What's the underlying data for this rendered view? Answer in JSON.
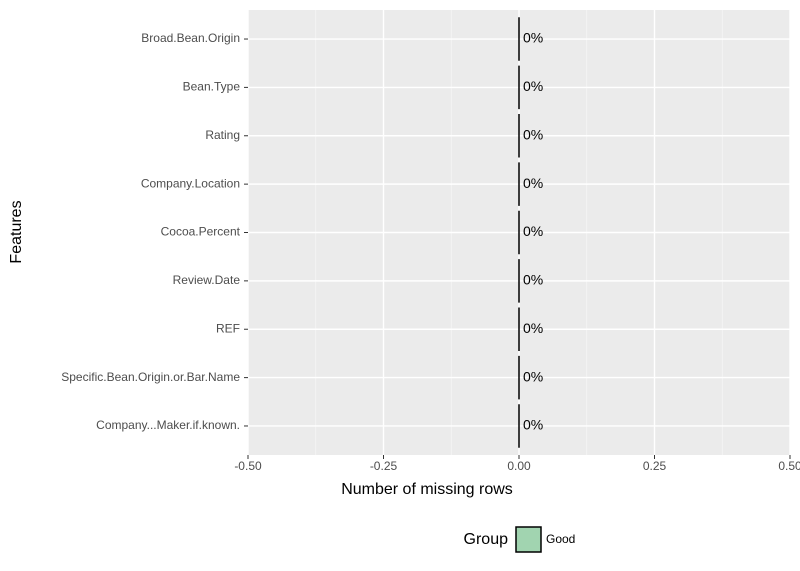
{
  "chart_data": {
    "type": "bar",
    "orientation": "horizontal",
    "categories": [
      "Broad.Bean.Origin",
      "Bean.Type",
      "Rating",
      "Company.Location",
      "Cocoa.Percent",
      "Review.Date",
      "REF",
      "Specific.Bean.Origin.or.Bar.Name",
      "Company...Maker.if.known."
    ],
    "series": [
      {
        "name": "Good",
        "color": "#a1d4b0",
        "values": [
          0,
          0,
          0,
          0,
          0,
          0,
          0,
          0,
          0
        ],
        "value_labels": [
          "0%",
          "0%",
          "0%",
          "0%",
          "0%",
          "0%",
          "0%",
          "0%",
          "0%"
        ]
      }
    ],
    "xlabel": "Number of missing rows",
    "ylabel": "Features",
    "legend_title": "Group",
    "legend_position": "bottom",
    "xlim": [
      -0.5,
      0.5
    ],
    "xticks": [
      {
        "value": -0.5,
        "label": "-0.50"
      },
      {
        "value": -0.25,
        "label": "-0.25"
      },
      {
        "value": 0,
        "label": "0.00"
      },
      {
        "value": 0.25,
        "label": "0.25"
      },
      {
        "value": 0.5,
        "label": "0.50"
      }
    ],
    "grid": true
  }
}
